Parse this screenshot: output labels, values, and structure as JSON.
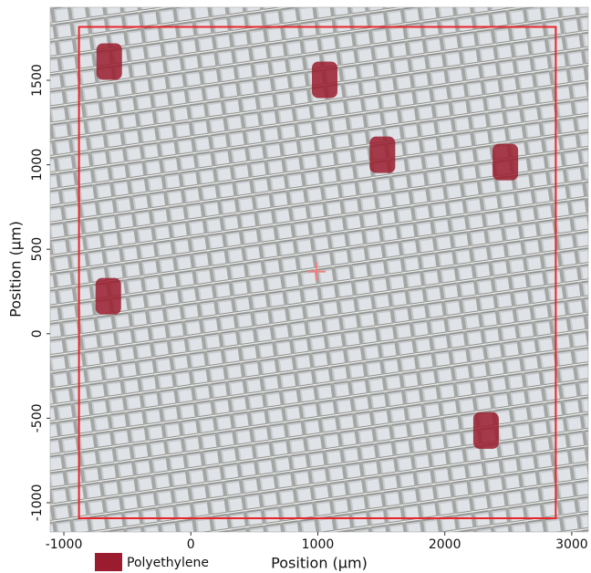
{
  "chart_data": {
    "type": "scatter",
    "x_label": "Position (μm)",
    "y_label": "Position (μm)",
    "xlim": [
      -1108,
      3130
    ],
    "ylim": [
      -1173,
      1932
    ],
    "xticks": [
      -1000,
      0,
      1000,
      2000,
      3000
    ],
    "yticks": [
      -1000,
      -500,
      0,
      500,
      1000,
      1500
    ],
    "series": [
      {
        "name": "Polyethylene",
        "color": "#9b1c2e",
        "x": [
          -643,
          1054,
          1509,
          2477,
          -650,
          2325
        ],
        "y": [
          1611,
          1503,
          1059,
          1016,
          222,
          -573
        ]
      }
    ],
    "scan_area": {
      "color": "#e8252a",
      "x": [
        -881,
        2874
      ],
      "y": [
        -1092,
        1816
      ]
    },
    "center": {
      "color": "#f08080",
      "x": 989,
      "y": 368
    }
  }
}
